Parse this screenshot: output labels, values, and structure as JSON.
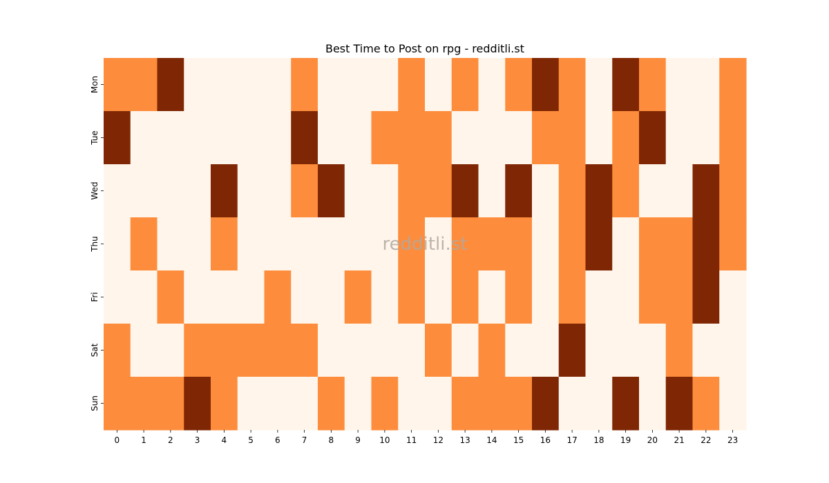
{
  "chart_data": {
    "type": "heatmap",
    "title": "Best Time to Post on rpg - redditli.st",
    "watermark": "redditli.st",
    "x_categories": [
      "0",
      "1",
      "2",
      "3",
      "4",
      "5",
      "6",
      "7",
      "8",
      "9",
      "10",
      "11",
      "12",
      "13",
      "14",
      "15",
      "16",
      "17",
      "18",
      "19",
      "20",
      "21",
      "22",
      "23"
    ],
    "y_categories": [
      "Mon",
      "Tue",
      "Wed",
      "Thu",
      "Fri",
      "Sat",
      "Sun"
    ],
    "values": [
      [
        1,
        1,
        2,
        0,
        0,
        0,
        0,
        1,
        0,
        0,
        0,
        1,
        0,
        1,
        0,
        1,
        2,
        1,
        0,
        2,
        1,
        0,
        0,
        1
      ],
      [
        2,
        0,
        0,
        0,
        0,
        0,
        0,
        2,
        0,
        0,
        1,
        1,
        1,
        0,
        0,
        0,
        1,
        1,
        0,
        1,
        2,
        0,
        0,
        1
      ],
      [
        0,
        0,
        0,
        0,
        2,
        0,
        0,
        1,
        2,
        0,
        0,
        1,
        1,
        2,
        0,
        2,
        0,
        1,
        2,
        1,
        0,
        0,
        2,
        1
      ],
      [
        0,
        1,
        0,
        0,
        1,
        0,
        0,
        0,
        0,
        0,
        0,
        1,
        0,
        1,
        1,
        1,
        0,
        1,
        2,
        0,
        1,
        1,
        2,
        1
      ],
      [
        0,
        0,
        1,
        0,
        0,
        0,
        1,
        0,
        0,
        1,
        0,
        1,
        0,
        1,
        0,
        1,
        0,
        1,
        0,
        0,
        1,
        1,
        2,
        0
      ],
      [
        1,
        0,
        0,
        1,
        1,
        1,
        1,
        1,
        0,
        0,
        0,
        0,
        1,
        0,
        1,
        0,
        0,
        2,
        0,
        0,
        0,
        1,
        0,
        0
      ],
      [
        1,
        1,
        1,
        2,
        1,
        0,
        0,
        0,
        1,
        0,
        1,
        0,
        0,
        1,
        1,
        1,
        2,
        0,
        0,
        2,
        0,
        2,
        1,
        0
      ]
    ],
    "colors": [
      "#fff5eb",
      "#fd8d3c",
      "#7f2704"
    ],
    "colorbar": false,
    "grid": false
  }
}
